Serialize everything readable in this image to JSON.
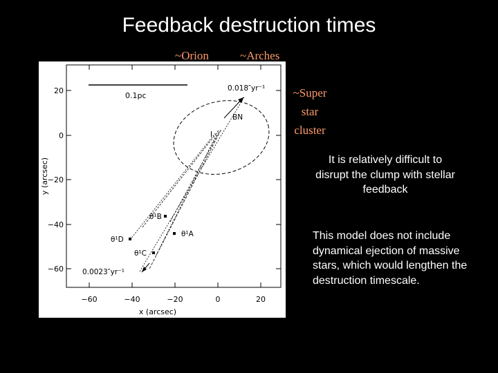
{
  "slide": {
    "title": "Feedback destruction times",
    "labels": {
      "orion": "~Orion",
      "arches": "~Arches",
      "super_star_cluster": "~Super\nstar\ncluster"
    },
    "notes": [
      "It is relatively difficult to disrupt the clump with stellar feedback",
      "This model does not include dynamical ejection of massive stars, which would lengthen the destruction timescale."
    ],
    "colors": {
      "background": "#000000",
      "title": "#ffffff",
      "label": "#ff9a6a"
    }
  },
  "figure": {
    "x_axis_label": "x (arcsec)",
    "y_axis_label": "y (arcsec)",
    "x_ticks": [
      "−60",
      "−40",
      "−20",
      "0",
      "20"
    ],
    "y_ticks": [
      "20",
      "0",
      "−20",
      "−40",
      "−60"
    ],
    "scale_bar_label": "0.1pc",
    "proper_motion_top": "0.018″yr⁻¹",
    "proper_motion_bottom": "0.0023″yr⁻¹",
    "source_labels": {
      "bn": "BN",
      "i": "I",
      "theta1b": "θ¹B",
      "theta1a": "θ¹A",
      "theta1d": "θ¹D",
      "theta1c": "θ¹C"
    }
  }
}
